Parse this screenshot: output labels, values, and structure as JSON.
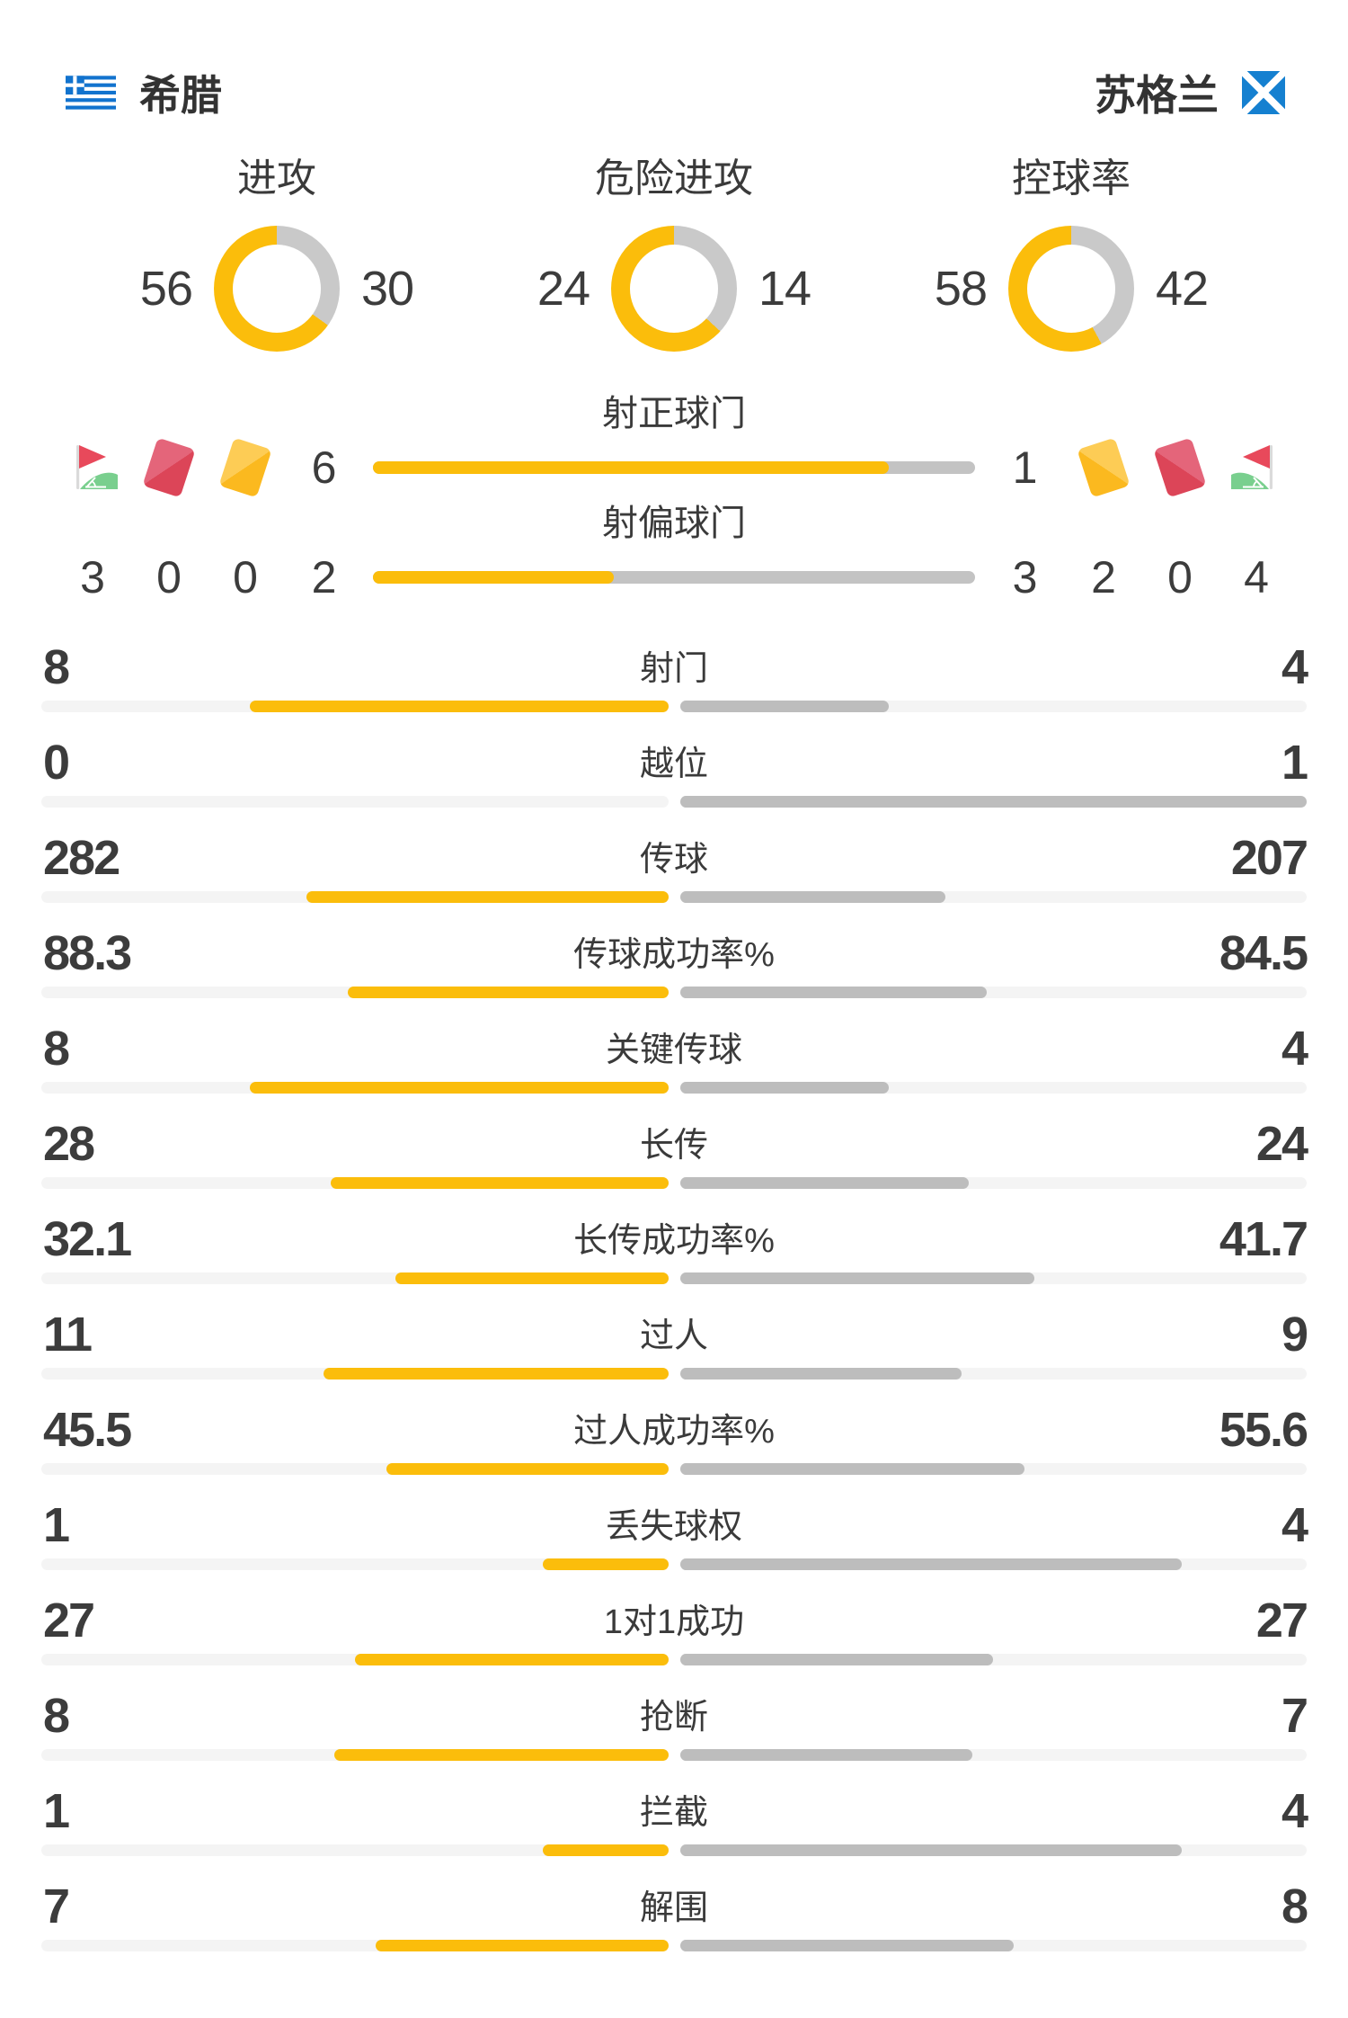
{
  "header": {
    "home": {
      "name": "希腊",
      "flag": "greece"
    },
    "away": {
      "name": "苏格兰",
      "flag": "scotland"
    }
  },
  "colors": {
    "home_accent": "#FBBD0B",
    "away_bar": "#BDBDBD",
    "donut_away": "#C9C9C9",
    "shots_track": "#C3C3C3",
    "stat_track": "#F4F4F4",
    "text": "#3C3C3C",
    "red_card": "#DC4558",
    "yellow_card": "#FBB91F",
    "corner_flag_red": "#E8495B",
    "corner_flag_green": "#79CF8E",
    "greece_blue": "#1273CE",
    "scotland_blue": "#1580D0"
  },
  "donuts": [
    {
      "label": "进攻",
      "home": 56,
      "away": 30
    },
    {
      "label": "危险进攻",
      "home": 24,
      "away": 14
    },
    {
      "label": "控球率",
      "home": 58,
      "away": 42
    }
  ],
  "shots": {
    "rows": [
      {
        "label": "射正球门",
        "home": 6,
        "away": 1
      },
      {
        "label": "射偏球门",
        "home": 2,
        "away": 3
      }
    ]
  },
  "discipline": {
    "home": [
      {
        "icon": "corner-flag",
        "count": 3
      },
      {
        "icon": "red-card",
        "count": 0
      },
      {
        "icon": "yellow-card",
        "count": 0
      }
    ],
    "away": [
      {
        "icon": "yellow-card",
        "count": 2
      },
      {
        "icon": "red-card",
        "count": 0
      },
      {
        "icon": "corner-flag",
        "count": 4
      }
    ]
  },
  "stats": [
    {
      "label": "射门",
      "home": 8,
      "away": 4
    },
    {
      "label": "越位",
      "home": 0,
      "away": 1
    },
    {
      "label": "传球",
      "home": 282,
      "away": 207
    },
    {
      "label": "传球成功率%",
      "home": 88.3,
      "away": 84.5
    },
    {
      "label": "关键传球",
      "home": 8,
      "away": 4
    },
    {
      "label": "长传",
      "home": 28,
      "away": 24
    },
    {
      "label": "长传成功率%",
      "home": 32.1,
      "away": 41.7
    },
    {
      "label": "过人",
      "home": 11,
      "away": 9
    },
    {
      "label": "过人成功率%",
      "home": 45.5,
      "away": 55.6
    },
    {
      "label": "丢失球权",
      "home": 1,
      "away": 4
    },
    {
      "label": "1对1成功",
      "home": 27,
      "away": 27
    },
    {
      "label": "抢断",
      "home": 8,
      "away": 7
    },
    {
      "label": "拦截",
      "home": 1,
      "away": 4
    },
    {
      "label": "解围",
      "home": 7,
      "away": 8
    }
  ]
}
